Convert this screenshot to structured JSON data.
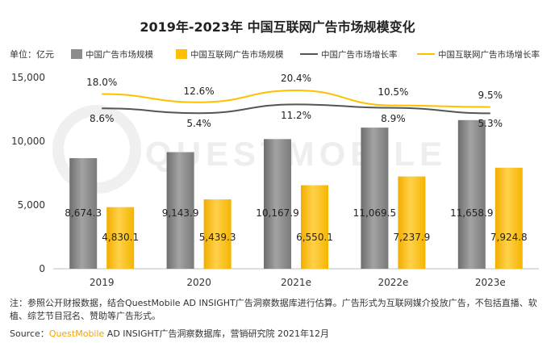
{
  "title": "2019年-2023年 中国互联网广告市场规模变化",
  "unit_label": "单位：亿元",
  "watermark": "QUESTMOBILE",
  "chart_data": {
    "type": "bar",
    "categories": [
      "2019",
      "2020",
      "2021e",
      "2022e",
      "2023e"
    ],
    "ylim": [
      0,
      15000
    ],
    "yticks": [
      "0",
      "5,000",
      "10,000",
      "15,000"
    ],
    "grid": false,
    "legend_position": "top",
    "series": [
      {
        "name": "中国广告市场规模",
        "type": "bar",
        "color": "#8c8c8c",
        "values": [
          8674.3,
          9143.9,
          10167.9,
          11069.5,
          11658.9
        ],
        "labels": [
          "8,674.3",
          "9,143.9",
          "10,167.9",
          "11,069.5",
          "11,658.9"
        ]
      },
      {
        "name": "中国互联网广告市场规模",
        "type": "bar",
        "color": "#ffc000",
        "values": [
          4830.1,
          5439.3,
          6550.1,
          7237.9,
          7924.8
        ],
        "labels": [
          "4,830.1",
          "5,439.3",
          "6,550.1",
          "7,237.9",
          "7,924.8"
        ]
      },
      {
        "name": "中国广告市场增长率",
        "type": "line",
        "color": "#555555",
        "values": [
          8.6,
          5.4,
          11.2,
          8.9,
          5.3
        ],
        "labels": [
          "8.6%",
          "5.4%",
          "11.2%",
          "8.9%",
          "5.3%"
        ]
      },
      {
        "name": "中国互联网广告市场增长率",
        "type": "line",
        "color": "#ffc000",
        "values": [
          18.0,
          12.6,
          20.4,
          10.5,
          9.5
        ],
        "labels": [
          "18.0%",
          "12.6%",
          "20.4%",
          "10.5%",
          "9.5%"
        ]
      }
    ]
  },
  "note": "注：参照公开财报数据，结合QuestMobile AD INSIGHT广告洞察数据库进行估算。广告形式为互联网媒介投放广告，不包括直播、软植、综艺节目冠名、赞助等广告形式。",
  "source_prefix": "Source：",
  "source_brand": "QuestMobile",
  "source_rest": " AD INSIGHT广告洞察数据库，营销研究院 2021年12月"
}
